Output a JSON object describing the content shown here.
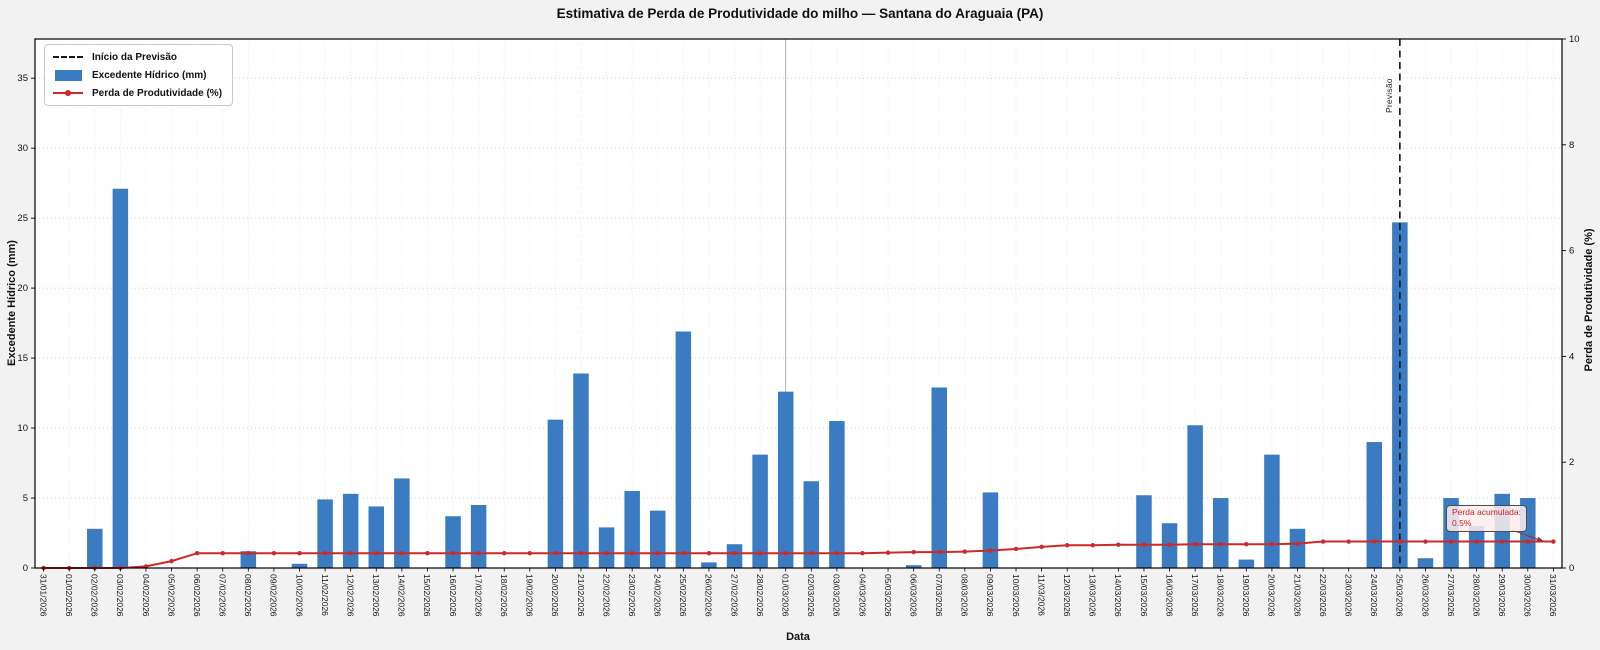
{
  "title": "Estimativa de Perda de Produtividade do milho — Santana do Araguaia (PA)",
  "axes": {
    "x_label": "Data",
    "y_left_label": "Excedente Hídrico (mm)",
    "y_right_label": "Perda de Produtividade (%)",
    "y_left_ticks": [
      0,
      5,
      10,
      15,
      20,
      25,
      30,
      35
    ],
    "y_right_ticks": [
      0,
      2,
      4,
      6,
      8,
      10
    ]
  },
  "legend": {
    "items": [
      {
        "label": "Início da Previsão",
        "type": "dashed-line",
        "color": "#1a1a1a"
      },
      {
        "label": "Excedente Hídrico (mm)",
        "type": "bar",
        "color": "#3b7bc1"
      },
      {
        "label": "Perda de Produtividade (%)",
        "type": "line-marker",
        "color": "#cc2a2a"
      }
    ]
  },
  "forecast": {
    "label": "Previsão",
    "date": "25/03/2026",
    "index": 53
  },
  "annotation": {
    "line1": "Perda acumulada:",
    "line2": "0.5%"
  },
  "colors": {
    "bar": "#3b7bc1",
    "line": "#cc2a2a",
    "forecast_line": "#141414",
    "month_gridline": "#ababab",
    "grid": "#d7d7d7",
    "grid_vertical": "#ebebeb",
    "annotation_arrow": "#993333",
    "plot_bg": "#ffffff",
    "figure_bg": "#f2f2f3"
  },
  "chart_data": {
    "type": "bar+line",
    "title": "Estimativa de Perda de Produtividade do milho — Santana do Araguaia (PA)",
    "xlabel": "Data",
    "ylabel_left": "Excedente Hídrico (mm)",
    "ylabel_right": "Perda de Produtividade (%)",
    "ylim_left": [
      0,
      37.8
    ],
    "ylim_right": [
      0,
      10
    ],
    "grid": true,
    "legend_position": "upper-left",
    "month_boundary_index": 29,
    "forecast_start_index": 53,
    "categories": [
      "31/01/2026",
      "01/02/2026",
      "02/02/2026",
      "03/02/2026",
      "04/02/2026",
      "05/02/2026",
      "06/02/2026",
      "07/02/2026",
      "08/02/2026",
      "09/02/2026",
      "10/02/2026",
      "11/02/2026",
      "12/02/2026",
      "13/02/2026",
      "14/02/2026",
      "15/02/2026",
      "16/02/2026",
      "17/02/2026",
      "18/02/2026",
      "19/02/2026",
      "20/02/2026",
      "21/02/2026",
      "22/02/2026",
      "23/02/2026",
      "24/02/2026",
      "25/02/2026",
      "26/02/2026",
      "27/02/2026",
      "28/02/2026",
      "01/03/2026",
      "02/03/2026",
      "03/03/2026",
      "04/03/2026",
      "05/03/2026",
      "06/03/2026",
      "07/03/2026",
      "08/03/2026",
      "09/03/2026",
      "10/03/2026",
      "11/03/2026",
      "12/03/2026",
      "13/03/2026",
      "14/03/2026",
      "15/03/2026",
      "16/03/2026",
      "17/03/2026",
      "18/03/2026",
      "19/03/2026",
      "20/03/2026",
      "21/03/2026",
      "22/03/2026",
      "23/03/2026",
      "24/03/2026",
      "25/03/2026",
      "26/03/2026",
      "27/03/2026",
      "28/03/2026",
      "29/03/2026",
      "30/03/2026",
      "31/03/2026"
    ],
    "series": [
      {
        "name": "Excedente Hídrico (mm)",
        "type": "bar",
        "axis": "left",
        "color": "#3b7bc1",
        "values": [
          0,
          0,
          2.8,
          27.1,
          0,
          0,
          0,
          0,
          1.2,
          0,
          0.3,
          4.9,
          5.3,
          4.4,
          6.4,
          0,
          3.7,
          4.5,
          0,
          0,
          10.6,
          13.9,
          2.9,
          5.5,
          4.1,
          16.9,
          0.4,
          1.7,
          8.1,
          12.6,
          6.2,
          10.5,
          0,
          0,
          0.2,
          12.9,
          0,
          5.4,
          0,
          0,
          0,
          0,
          0,
          5.2,
          3.2,
          10.2,
          5.0,
          0.6,
          8.1,
          2.8,
          0,
          0,
          9.0,
          24.7,
          0.7,
          5.0,
          3.0,
          5.3,
          5.0,
          0
        ]
      },
      {
        "name": "Perda de Produtividade (%)",
        "type": "line",
        "axis": "right",
        "color": "#cc2a2a",
        "values": [
          0,
          0,
          0,
          0,
          0.03,
          0.13,
          0.28,
          0.28,
          0.28,
          0.28,
          0.28,
          0.28,
          0.28,
          0.28,
          0.28,
          0.28,
          0.28,
          0.28,
          0.28,
          0.28,
          0.28,
          0.28,
          0.28,
          0.28,
          0.28,
          0.28,
          0.28,
          0.28,
          0.28,
          0.28,
          0.28,
          0.28,
          0.28,
          0.29,
          0.3,
          0.3,
          0.31,
          0.33,
          0.36,
          0.4,
          0.43,
          0.43,
          0.44,
          0.44,
          0.44,
          0.45,
          0.45,
          0.45,
          0.45,
          0.46,
          0.5,
          0.5,
          0.5,
          0.5,
          0.5,
          0.5,
          0.5,
          0.5,
          0.5,
          0.5
        ]
      }
    ]
  }
}
